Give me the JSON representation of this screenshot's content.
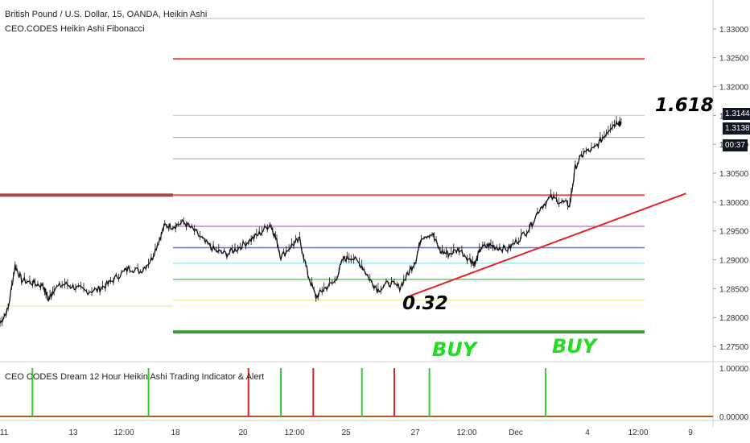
{
  "header": {
    "symbol_line": "British Pound / U.S. Dollar, 15, OANDA, Heikin Ashi",
    "indicator_name": "CEO.CODES Heikin Ashi Fibonacci",
    "lower_indicator_name": "CEO CODES Dream 12 Hour Heikin Ashi Trading Indicator & Alert"
  },
  "annotations": {
    "fib_top": "1.618",
    "fib_bottom": "0.32",
    "buy1": "BUY",
    "buy2": "BUY"
  },
  "price_tags": {
    "last_price": "1.31442",
    "prev_price": "1.31382",
    "countdown": "00:37"
  },
  "colors": {
    "buy": "#22dd22",
    "trendline": "#e8202a",
    "signal_up": "#33cc33",
    "signal_down": "#e02020",
    "baseline": "#b85a1a",
    "fib_red": "#f05050",
    "fib_green": "#3a9a3a"
  },
  "chart_data": [
    {
      "type": "candlestick",
      "title": "British Pound / U.S. Dollar, 15, OANDA, Heikin Ashi",
      "ylim": [
        1.2725,
        1.335
      ],
      "y_ticks": [
        "1.33000",
        "1.32500",
        "1.32000",
        "1.31500",
        "1.31000",
        "1.30500",
        "1.30000",
        "1.29500",
        "1.29000",
        "1.28500",
        "1.28000",
        "1.27500"
      ],
      "x_ticks": [
        "11",
        "13",
        "12:00",
        "18",
        "20",
        "12:00",
        "25",
        "27",
        "12:00",
        "Dec",
        "4",
        "12:00",
        "9"
      ],
      "price_series": [
        {
          "t": 0,
          "p": 1.279
        },
        {
          "t": 1.5,
          "p": 1.2815
        },
        {
          "t": 2.8,
          "p": 1.289
        },
        {
          "t": 4,
          "p": 1.2865
        },
        {
          "t": 6,
          "p": 1.286
        },
        {
          "t": 8,
          "p": 1.2855
        },
        {
          "t": 9,
          "p": 1.283
        },
        {
          "t": 10,
          "p": 1.285
        },
        {
          "t": 12,
          "p": 1.2858
        },
        {
          "t": 14,
          "p": 1.2852
        },
        {
          "t": 16,
          "p": 1.2845
        },
        {
          "t": 18,
          "p": 1.2848
        },
        {
          "t": 20,
          "p": 1.2858
        },
        {
          "t": 22,
          "p": 1.2873
        },
        {
          "t": 24,
          "p": 1.2886
        },
        {
          "t": 26,
          "p": 1.288
        },
        {
          "t": 28,
          "p": 1.29
        },
        {
          "t": 29.5,
          "p": 1.2935
        },
        {
          "t": 30.5,
          "p": 1.296
        },
        {
          "t": 32,
          "p": 1.2958
        },
        {
          "t": 34,
          "p": 1.2965
        },
        {
          "t": 36,
          "p": 1.295
        },
        {
          "t": 38,
          "p": 1.293
        },
        {
          "t": 40,
          "p": 1.2915
        },
        {
          "t": 42,
          "p": 1.291
        },
        {
          "t": 44,
          "p": 1.292
        },
        {
          "t": 46,
          "p": 1.2932
        },
        {
          "t": 48,
          "p": 1.2945
        },
        {
          "t": 50,
          "p": 1.2962
        },
        {
          "t": 51,
          "p": 1.294
        },
        {
          "t": 52,
          "p": 1.2905
        },
        {
          "t": 54,
          "p": 1.2925
        },
        {
          "t": 55.5,
          "p": 1.2935
        },
        {
          "t": 57,
          "p": 1.2875
        },
        {
          "t": 58.5,
          "p": 1.2835
        },
        {
          "t": 60,
          "p": 1.285
        },
        {
          "t": 62,
          "p": 1.2862
        },
        {
          "t": 63.5,
          "p": 1.29
        },
        {
          "t": 65,
          "p": 1.2905
        },
        {
          "t": 67,
          "p": 1.289
        },
        {
          "t": 68.5,
          "p": 1.2865
        },
        {
          "t": 70,
          "p": 1.2848
        },
        {
          "t": 72,
          "p": 1.286
        },
        {
          "t": 74,
          "p": 1.2852
        },
        {
          "t": 75.5,
          "p": 1.2875
        },
        {
          "t": 77,
          "p": 1.29
        },
        {
          "t": 78,
          "p": 1.294
        },
        {
          "t": 80,
          "p": 1.2945
        },
        {
          "t": 81.5,
          "p": 1.2915
        },
        {
          "t": 83,
          "p": 1.291
        },
        {
          "t": 85,
          "p": 1.2918
        },
        {
          "t": 87,
          "p": 1.29
        },
        {
          "t": 88,
          "p": 1.2893
        },
        {
          "t": 89,
          "p": 1.292
        },
        {
          "t": 90.5,
          "p": 1.2925
        },
        {
          "t": 92,
          "p": 1.2922
        },
        {
          "t": 94,
          "p": 1.2918
        },
        {
          "t": 96,
          "p": 1.2935
        },
        {
          "t": 98,
          "p": 1.2955
        },
        {
          "t": 100,
          "p": 1.299
        },
        {
          "t": 102,
          "p": 1.3008
        },
        {
          "t": 104,
          "p": 1.3
        },
        {
          "t": 105.5,
          "p": 1.2995
        },
        {
          "t": 106.5,
          "p": 1.306
        },
        {
          "t": 108,
          "p": 1.3085
        },
        {
          "t": 110,
          "p": 1.3092
        },
        {
          "t": 111.5,
          "p": 1.311
        },
        {
          "t": 113,
          "p": 1.313
        },
        {
          "t": 114.5,
          "p": 1.314
        },
        {
          "t": 115,
          "p": 1.3138
        }
      ],
      "fib_levels": [
        {
          "price": 1.3318,
          "color": "#bdbdbd",
          "width": 1
        },
        {
          "price": 1.3248,
          "color": "#f05050",
          "width": 2
        },
        {
          "price": 1.315,
          "color": "#f5c27a",
          "width": 1
        },
        {
          "price": 1.3112,
          "color": "#9e9e9e",
          "width": 1
        },
        {
          "price": 1.3075,
          "color": "#9e9e9e",
          "width": 1
        },
        {
          "price": 1.3012,
          "color": "#f05050",
          "width": 2
        },
        {
          "price": 1.2958,
          "color": "#a64ca6",
          "width": 1
        },
        {
          "price": 1.2921,
          "color": "#5b6cf0",
          "width": 1.5
        },
        {
          "price": 1.2894,
          "color": "#6fe3e8",
          "width": 1
        },
        {
          "price": 1.2866,
          "color": "#3a9a3a",
          "width": 1
        },
        {
          "price": 1.283,
          "color": "#f2e27a",
          "width": 1
        },
        {
          "price": 1.2775,
          "color": "#3a9a3a",
          "width": 4
        }
      ],
      "left_levels": [
        {
          "price": 1.3012,
          "color": "#a84b45",
          "width": 4
        },
        {
          "price": 1.282,
          "color": "#f2e27a",
          "width": 1
        }
      ],
      "trendline": {
        "from": {
          "t": 76,
          "p": 1.2838
        },
        "to": {
          "t": 127,
          "p": 1.3015
        }
      }
    },
    {
      "type": "bar",
      "title": "CEO CODES Dream 12 Hour Heikin Ashi Trading Indicator & Alert",
      "ylim": [
        0,
        1
      ],
      "y_ticks": [
        "1.00000",
        "0.00000"
      ],
      "signals": [
        {
          "t": 6,
          "dir": "up"
        },
        {
          "t": 27.5,
          "dir": "up"
        },
        {
          "t": 46,
          "dir": "down"
        },
        {
          "t": 52,
          "dir": "up"
        },
        {
          "t": 58,
          "dir": "down"
        },
        {
          "t": 67,
          "dir": "up"
        },
        {
          "t": 73,
          "dir": "down"
        },
        {
          "t": 79.5,
          "dir": "up"
        },
        {
          "t": 101,
          "dir": "up"
        }
      ]
    }
  ]
}
